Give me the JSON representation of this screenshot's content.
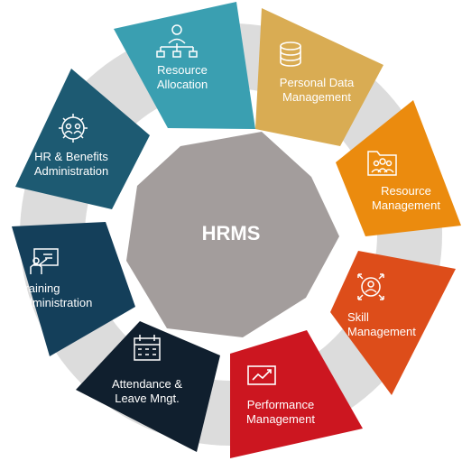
{
  "hub": {
    "title": "HRMS",
    "color": "#a39d9c"
  },
  "ring_color": "#dcdcdc",
  "segments": [
    {
      "id": "resource-allocation",
      "line1": "Resource",
      "line2": "Allocation",
      "color": "#3a9fb1",
      "icon": "org-chart-icon"
    },
    {
      "id": "personal-data",
      "line1": "Personal Data",
      "line2": "Management",
      "color": "#d9ac53",
      "icon": "database-icon"
    },
    {
      "id": "resource-management",
      "line1": "Resource",
      "line2": "Management",
      "color": "#eb8b0e",
      "icon": "folder-users-icon"
    },
    {
      "id": "skill-management",
      "line1": "Skill",
      "line2": "Management",
      "color": "#dd4d1a",
      "icon": "target-person-icon"
    },
    {
      "id": "performance-management",
      "line1": "Performance",
      "line2": "Management",
      "color": "#cc1620",
      "icon": "trend-chart-icon"
    },
    {
      "id": "attendance-leave",
      "line1": "Attendance &",
      "line2": "Leave Mngt.",
      "color": "#101f2e",
      "icon": "calendar-icon"
    },
    {
      "id": "training-administration",
      "line1": "Training",
      "line2": "Administration",
      "color": "#143f5a",
      "icon": "presentation-icon"
    },
    {
      "id": "hr-benefits",
      "line1": "HR & Benefits",
      "line2": "Administration",
      "color": "#1d5a72",
      "icon": "gear-people-icon"
    }
  ]
}
